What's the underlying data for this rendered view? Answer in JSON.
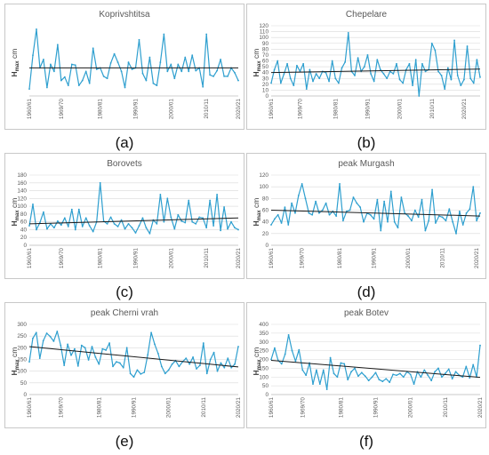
{
  "colors": {
    "series": "#2e9fcf",
    "trend": "#1a1a1a",
    "grid": "#d9d9d9",
    "border": "#c8c8c8"
  },
  "y_label": {
    "main": "H",
    "sub": "max",
    "unit": " cm"
  },
  "chart_data": [
    {
      "type": "line",
      "title": "Koprivshtitsa",
      "panel_label": "(a)",
      "x_tick_labels": [
        "1960/61",
        "1969/70",
        "1980/81",
        "1990/91",
        "2000/01",
        "2010/11",
        "2020/21"
      ],
      "x_tick_index": [
        0,
        9,
        20,
        30,
        40,
        50,
        60
      ],
      "ylim": [
        0,
        100
      ],
      "yticks": [],
      "show_grid": false,
      "trend": [
        40,
        40
      ],
      "values": [
        10,
        58,
        95,
        40,
        52,
        12,
        45,
        35,
        73,
        22,
        27,
        15,
        45,
        44,
        15,
        22,
        35,
        18,
        68,
        38,
        40,
        28,
        25,
        47,
        60,
        48,
        35,
        12,
        48,
        38,
        40,
        80,
        32,
        22,
        55,
        18,
        15,
        48,
        88,
        35,
        45,
        25,
        45,
        35,
        55,
        35,
        58,
        36,
        40,
        13,
        88,
        30,
        28,
        36,
        52,
        28,
        28,
        40,
        33,
        22
      ]
    },
    {
      "type": "line",
      "title": "Chepelare",
      "panel_label": "(b)",
      "x_tick_labels": [
        "1960/61",
        "1969/70",
        "1980/81",
        "1990/91",
        "2000/01",
        "2010/11",
        "2020/21"
      ],
      "x_tick_index": [
        0,
        9,
        20,
        30,
        40,
        50,
        60
      ],
      "ylim": [
        0,
        120
      ],
      "yticks": [
        0,
        10,
        20,
        30,
        40,
        50,
        60,
        70,
        80,
        90,
        100,
        110,
        120
      ],
      "show_grid": true,
      "trend": [
        40,
        46
      ],
      "values": [
        22,
        45,
        60,
        22,
        38,
        55,
        30,
        18,
        52,
        42,
        55,
        12,
        45,
        25,
        38,
        30,
        42,
        40,
        25,
        60,
        30,
        22,
        48,
        58,
        108,
        42,
        35,
        65,
        42,
        50,
        70,
        38,
        25,
        62,
        45,
        38,
        30,
        42,
        38,
        55,
        28,
        22,
        45,
        55,
        18,
        62,
        0,
        55,
        42,
        45,
        90,
        78,
        42,
        35,
        12,
        48,
        28,
        95,
        35,
        18,
        28,
        85,
        30,
        22,
        62,
        32
      ]
    },
    {
      "type": "line",
      "title": "Borovets",
      "panel_label": "(c)",
      "x_tick_labels": [
        "1960/61",
        "1969/70",
        "1980/81",
        "1990/91",
        "2000/01",
        "2010/11",
        "2020/21"
      ],
      "x_tick_index": [
        0,
        9,
        20,
        30,
        40,
        50,
        60
      ],
      "ylim": [
        0,
        180
      ],
      "yticks": [
        0,
        20,
        40,
        60,
        80,
        100,
        120,
        140,
        160,
        180
      ],
      "show_grid": true,
      "trend": [
        55,
        70
      ],
      "values": [
        50,
        105,
        40,
        58,
        85,
        42,
        55,
        45,
        62,
        52,
        70,
        48,
        92,
        40,
        92,
        48,
        70,
        50,
        35,
        60,
        160,
        62,
        55,
        72,
        55,
        48,
        65,
        42,
        55,
        45,
        32,
        50,
        70,
        45,
        30,
        65,
        55,
        130,
        60,
        120,
        72,
        42,
        78,
        62,
        58,
        115,
        60,
        55,
        72,
        70,
        45,
        115,
        50,
        130,
        38,
        98,
        42,
        60,
        45,
        40
      ]
    },
    {
      "type": "line",
      "title": "peak Murgash",
      "panel_label": "(d)",
      "x_tick_labels": [
        "1960/61",
        "1969/70",
        "1980/81",
        "1990/91",
        "2000/01",
        "2010/11",
        "2020/21"
      ],
      "x_tick_index": [
        0,
        9,
        20,
        30,
        40,
        50,
        60
      ],
      "ylim": [
        0,
        120
      ],
      "yticks": [
        0,
        20,
        40,
        60,
        80,
        100,
        120
      ],
      "show_grid": true,
      "trend": [
        60,
        50
      ],
      "values": [
        35,
        45,
        52,
        38,
        65,
        35,
        72,
        55,
        85,
        105,
        80,
        55,
        52,
        75,
        55,
        60,
        72,
        52,
        58,
        50,
        105,
        42,
        58,
        60,
        82,
        72,
        65,
        40,
        55,
        52,
        45,
        78,
        25,
        75,
        40,
        92,
        40,
        30,
        82,
        55,
        50,
        42,
        60,
        48,
        78,
        25,
        42,
        95,
        38,
        50,
        48,
        42,
        62,
        40,
        20,
        58,
        35,
        55,
        62,
        100,
        42,
        55
      ]
    },
    {
      "type": "line",
      "title": "peak Cherni vrah",
      "panel_label": "(e)",
      "x_tick_labels": [
        "1960/61",
        "1969/70",
        "1980/81",
        "1990/91",
        "2000/01",
        "2010/11",
        "2020/21"
      ],
      "x_tick_index": [
        0,
        9,
        20,
        30,
        40,
        50,
        60
      ],
      "ylim": [
        0,
        300
      ],
      "yticks": [
        0,
        50,
        100,
        150,
        200,
        250,
        300
      ],
      "show_grid": true,
      "trend": [
        205,
        118
      ],
      "values": [
        140,
        240,
        265,
        155,
        230,
        262,
        248,
        228,
        270,
        210,
        125,
        215,
        168,
        195,
        122,
        210,
        200,
        148,
        205,
        160,
        130,
        195,
        190,
        220,
        120,
        140,
        135,
        115,
        200,
        90,
        75,
        105,
        88,
        95,
        170,
        265,
        215,
        175,
        120,
        90,
        105,
        130,
        145,
        120,
        140,
        155,
        130,
        160,
        110,
        125,
        220,
        90,
        150,
        180,
        100,
        135,
        115,
        155,
        115,
        130,
        205
      ]
    },
    {
      "type": "line",
      "title": "peak Botev",
      "panel_label": "(f)",
      "x_tick_labels": [
        "1960/61",
        "1969/70",
        "1980/81",
        "1990/91",
        "2000/01",
        "2010/11",
        "2020/21"
      ],
      "x_tick_index": [
        0,
        9,
        20,
        30,
        40,
        50,
        60
      ],
      "ylim": [
        0,
        400
      ],
      "yticks": [
        0,
        50,
        100,
        150,
        200,
        250,
        300,
        350,
        400
      ],
      "show_grid": true,
      "trend": [
        195,
        98
      ],
      "values": [
        200,
        265,
        195,
        175,
        230,
        340,
        250,
        190,
        255,
        140,
        110,
        180,
        60,
        140,
        60,
        140,
        30,
        210,
        120,
        100,
        180,
        175,
        85,
        130,
        150,
        105,
        125,
        105,
        80,
        100,
        125,
        85,
        75,
        90,
        70,
        115,
        110,
        120,
        100,
        130,
        115,
        60,
        130,
        100,
        140,
        110,
        80,
        130,
        150,
        100,
        120,
        145,
        90,
        130,
        110,
        100,
        160,
        95,
        170,
        100,
        280
      ]
    }
  ]
}
